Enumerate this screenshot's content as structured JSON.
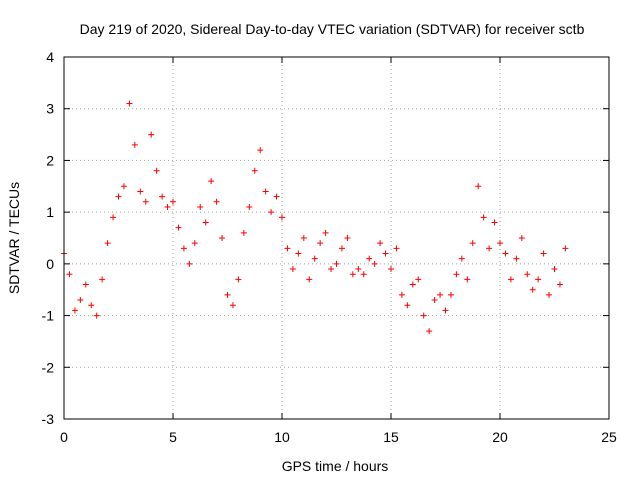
{
  "chart_data": {
    "type": "scatter",
    "title": "Day 219 of 2020, Sidereal Day-to-day VTEC variation (SDTVAR) for receiver sctb",
    "xlabel": "GPS time / hours",
    "ylabel": "SDTVAR / TECUs",
    "xlim": [
      0,
      25
    ],
    "ylim": [
      -3,
      4
    ],
    "x_ticks": [
      "0",
      "5",
      "10",
      "15",
      "20",
      "25"
    ],
    "y_ticks": [
      "-3",
      "-2",
      "-1",
      "0",
      "1",
      "2",
      "3",
      "4"
    ],
    "grid": true,
    "marker": "+",
    "series_color": "#ff0000",
    "series": [
      {
        "name": "SDTVAR",
        "x": [
          0.0,
          0.25,
          0.5,
          0.75,
          1.0,
          1.25,
          1.5,
          1.75,
          2.0,
          2.25,
          2.5,
          2.75,
          3.0,
          3.25,
          3.5,
          3.75,
          4.0,
          4.25,
          4.5,
          4.75,
          5.0,
          5.25,
          5.5,
          5.75,
          6.0,
          6.25,
          6.5,
          6.75,
          7.0,
          7.25,
          7.5,
          7.75,
          8.0,
          8.25,
          8.5,
          8.75,
          9.0,
          9.25,
          9.5,
          9.75,
          10.0,
          10.25,
          10.5,
          10.75,
          11.0,
          11.25,
          11.5,
          11.75,
          12.0,
          12.25,
          12.5,
          12.75,
          13.0,
          13.25,
          13.5,
          13.75,
          14.0,
          14.25,
          14.5,
          14.75,
          15.0,
          15.25,
          15.5,
          15.75,
          16.0,
          16.25,
          16.5,
          16.75,
          17.0,
          17.25,
          17.5,
          17.75,
          18.0,
          18.25,
          18.5,
          18.75,
          19.0,
          19.25,
          19.5,
          19.75,
          20.0,
          20.25,
          20.5,
          20.75,
          21.0,
          21.25,
          21.5,
          21.75,
          22.0,
          22.25,
          22.5,
          22.75,
          23.0
        ],
        "y": [
          0.2,
          -0.2,
          -0.9,
          -0.7,
          -0.4,
          -0.8,
          -1.0,
          -0.3,
          0.4,
          0.9,
          1.3,
          1.5,
          3.1,
          2.3,
          1.4,
          1.2,
          2.5,
          1.8,
          1.3,
          1.1,
          1.2,
          0.7,
          0.3,
          0.0,
          0.4,
          1.1,
          0.8,
          1.6,
          1.2,
          0.5,
          -0.6,
          -0.8,
          -0.3,
          0.6,
          1.1,
          1.8,
          2.2,
          1.4,
          1.0,
          1.3,
          0.9,
          0.3,
          -0.1,
          0.2,
          0.5,
          -0.3,
          0.1,
          0.4,
          0.6,
          -0.1,
          0.0,
          0.3,
          0.5,
          -0.2,
          -0.1,
          -0.2,
          0.1,
          0.0,
          0.4,
          0.2,
          -0.1,
          0.3,
          -0.6,
          -0.8,
          -0.4,
          -0.3,
          -1.0,
          -1.3,
          -0.7,
          -0.6,
          -0.9,
          -0.6,
          -0.2,
          0.1,
          -0.3,
          0.4,
          1.5,
          0.9,
          0.3,
          0.8,
          0.4,
          0.2,
          -0.3,
          0.1,
          0.5,
          -0.2,
          -0.5,
          -0.3,
          0.2,
          -0.6,
          -0.1,
          -0.4,
          0.3
        ]
      }
    ]
  }
}
